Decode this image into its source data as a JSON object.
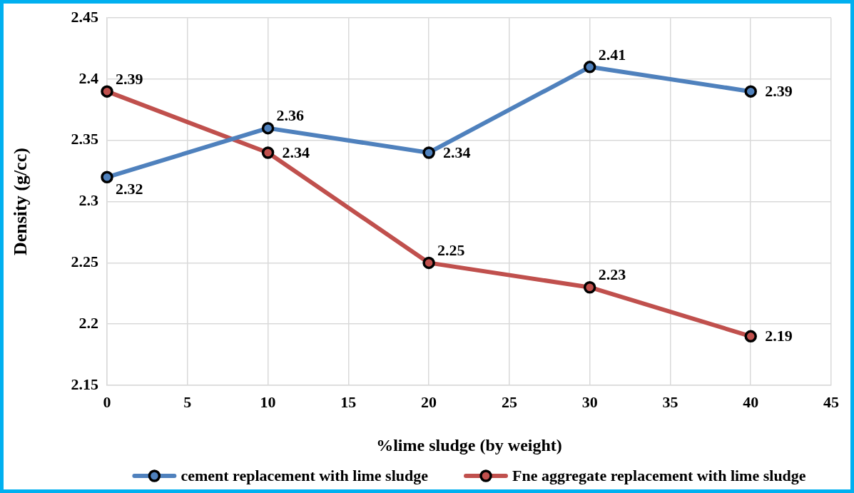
{
  "chart_data": {
    "type": "line",
    "xlabel": "%lime sludge (by weight)",
    "ylabel": "Density (g/cc)",
    "x": [
      0,
      10,
      20,
      30,
      40
    ],
    "xlim": [
      0,
      45
    ],
    "xticks": [
      0,
      5,
      10,
      15,
      20,
      25,
      30,
      35,
      40,
      45
    ],
    "ylim": [
      2.15,
      2.45
    ],
    "yticks": [
      2.15,
      2.2,
      2.25,
      2.3,
      2.35,
      2.4,
      2.45
    ],
    "series": [
      {
        "name": "cement replacement with lime sludge",
        "color": "#4f81bd",
        "values": [
          2.32,
          2.36,
          2.34,
          2.41,
          2.39
        ]
      },
      {
        "name": "Fne aggregate replacement with lime sludge",
        "color": "#c0504d",
        "values": [
          2.39,
          2.34,
          2.25,
          2.23,
          2.19
        ]
      }
    ],
    "grid": true,
    "legend": "bottom",
    "marker": "circle",
    "line_style": "solid",
    "data_labels": true
  }
}
